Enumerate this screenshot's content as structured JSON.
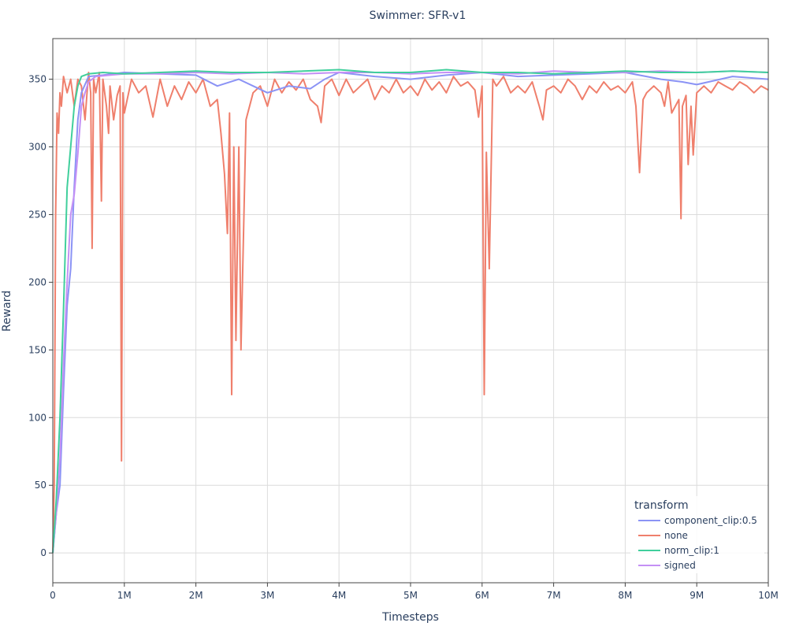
{
  "chart_data": {
    "type": "line",
    "title": "Swimmer: SFR-v1",
    "xlabel": "Timesteps",
    "ylabel": "Reward",
    "xlim": [
      0,
      10000000
    ],
    "ylim": [
      -22,
      380
    ],
    "grid": true,
    "legend_placement": "bottom-right",
    "legend_title": "transform",
    "x_ticks": [
      {
        "value": 0,
        "label": "0"
      },
      {
        "value": 1000000,
        "label": "1M"
      },
      {
        "value": 2000000,
        "label": "2M"
      },
      {
        "value": 3000000,
        "label": "3M"
      },
      {
        "value": 4000000,
        "label": "4M"
      },
      {
        "value": 5000000,
        "label": "5M"
      },
      {
        "value": 6000000,
        "label": "6M"
      },
      {
        "value": 7000000,
        "label": "7M"
      },
      {
        "value": 8000000,
        "label": "8M"
      },
      {
        "value": 9000000,
        "label": "9M"
      },
      {
        "value": 10000000,
        "label": "10M"
      }
    ],
    "y_ticks": [
      {
        "value": 0,
        "label": "0"
      },
      {
        "value": 50,
        "label": "50"
      },
      {
        "value": 100,
        "label": "100"
      },
      {
        "value": 150,
        "label": "150"
      },
      {
        "value": 200,
        "label": "200"
      },
      {
        "value": 250,
        "label": "250"
      },
      {
        "value": 300,
        "label": "300"
      },
      {
        "value": 350,
        "label": "350"
      }
    ],
    "series": [
      {
        "name": "component_clip:0.5",
        "color": "#8b93f5",
        "points": [
          [
            0,
            0
          ],
          [
            50000,
            30
          ],
          [
            100000,
            50
          ],
          [
            150000,
            120
          ],
          [
            200000,
            183
          ],
          [
            250000,
            210
          ],
          [
            300000,
            270
          ],
          [
            350000,
            320
          ],
          [
            400000,
            340
          ],
          [
            500000,
            352
          ],
          [
            700000,
            353
          ],
          [
            1000000,
            355
          ],
          [
            1500000,
            354
          ],
          [
            2000000,
            353
          ],
          [
            2300000,
            345
          ],
          [
            2600000,
            350
          ],
          [
            2800000,
            345
          ],
          [
            3000000,
            340
          ],
          [
            3300000,
            345
          ],
          [
            3600000,
            343
          ],
          [
            3800000,
            350
          ],
          [
            4000000,
            355
          ],
          [
            4500000,
            352
          ],
          [
            5000000,
            350
          ],
          [
            5500000,
            353
          ],
          [
            6000000,
            355
          ],
          [
            6500000,
            352
          ],
          [
            7000000,
            353
          ],
          [
            7500000,
            354
          ],
          [
            8000000,
            355
          ],
          [
            8500000,
            350
          ],
          [
            8800000,
            348
          ],
          [
            9000000,
            346
          ],
          [
            9500000,
            352
          ],
          [
            10000000,
            350
          ]
        ]
      },
      {
        "name": "none",
        "color": "#ef7f6c",
        "points": [
          [
            0,
            0
          ],
          [
            20000,
            50
          ],
          [
            40000,
            250
          ],
          [
            60000,
            325
          ],
          [
            80000,
            310
          ],
          [
            100000,
            340
          ],
          [
            120000,
            330
          ],
          [
            150000,
            352
          ],
          [
            200000,
            340
          ],
          [
            250000,
            350
          ],
          [
            300000,
            330
          ],
          [
            350000,
            350
          ],
          [
            400000,
            345
          ],
          [
            450000,
            320
          ],
          [
            500000,
            355
          ],
          [
            530000,
            340
          ],
          [
            550000,
            225
          ],
          [
            570000,
            350
          ],
          [
            600000,
            340
          ],
          [
            650000,
            355
          ],
          [
            680000,
            260
          ],
          [
            700000,
            350
          ],
          [
            750000,
            330
          ],
          [
            780000,
            310
          ],
          [
            800000,
            345
          ],
          [
            850000,
            320
          ],
          [
            900000,
            338
          ],
          [
            940000,
            345
          ],
          [
            960000,
            68
          ],
          [
            980000,
            340
          ],
          [
            1000000,
            325
          ],
          [
            1100000,
            350
          ],
          [
            1200000,
            340
          ],
          [
            1300000,
            345
          ],
          [
            1400000,
            322
          ],
          [
            1500000,
            350
          ],
          [
            1600000,
            330
          ],
          [
            1700000,
            345
          ],
          [
            1800000,
            335
          ],
          [
            1900000,
            348
          ],
          [
            2000000,
            340
          ],
          [
            2100000,
            350
          ],
          [
            2200000,
            330
          ],
          [
            2300000,
            335
          ],
          [
            2350000,
            310
          ],
          [
            2400000,
            280
          ],
          [
            2440000,
            236
          ],
          [
            2470000,
            325
          ],
          [
            2500000,
            117
          ],
          [
            2530000,
            300
          ],
          [
            2560000,
            157
          ],
          [
            2600000,
            300
          ],
          [
            2630000,
            150
          ],
          [
            2700000,
            320
          ],
          [
            2800000,
            340
          ],
          [
            2900000,
            345
          ],
          [
            3000000,
            330
          ],
          [
            3100000,
            350
          ],
          [
            3200000,
            340
          ],
          [
            3300000,
            348
          ],
          [
            3400000,
            342
          ],
          [
            3500000,
            350
          ],
          [
            3600000,
            335
          ],
          [
            3700000,
            330
          ],
          [
            3750000,
            318
          ],
          [
            3800000,
            345
          ],
          [
            3900000,
            350
          ],
          [
            4000000,
            338
          ],
          [
            4100000,
            350
          ],
          [
            4200000,
            340
          ],
          [
            4300000,
            345
          ],
          [
            4400000,
            350
          ],
          [
            4500000,
            335
          ],
          [
            4600000,
            345
          ],
          [
            4700000,
            340
          ],
          [
            4800000,
            350
          ],
          [
            4900000,
            340
          ],
          [
            5000000,
            345
          ],
          [
            5100000,
            338
          ],
          [
            5200000,
            350
          ],
          [
            5300000,
            342
          ],
          [
            5400000,
            348
          ],
          [
            5500000,
            340
          ],
          [
            5600000,
            352
          ],
          [
            5700000,
            345
          ],
          [
            5800000,
            348
          ],
          [
            5900000,
            342
          ],
          [
            5950000,
            322
          ],
          [
            6000000,
            345
          ],
          [
            6030000,
            117
          ],
          [
            6060000,
            296
          ],
          [
            6100000,
            210
          ],
          [
            6150000,
            350
          ],
          [
            6200000,
            345
          ],
          [
            6300000,
            352
          ],
          [
            6400000,
            340
          ],
          [
            6500000,
            345
          ],
          [
            6600000,
            340
          ],
          [
            6700000,
            348
          ],
          [
            6800000,
            330
          ],
          [
            6850000,
            320
          ],
          [
            6900000,
            342
          ],
          [
            7000000,
            345
          ],
          [
            7100000,
            340
          ],
          [
            7200000,
            350
          ],
          [
            7300000,
            345
          ],
          [
            7400000,
            335
          ],
          [
            7500000,
            345
          ],
          [
            7600000,
            340
          ],
          [
            7700000,
            348
          ],
          [
            7800000,
            342
          ],
          [
            7900000,
            345
          ],
          [
            8000000,
            340
          ],
          [
            8100000,
            348
          ],
          [
            8150000,
            330
          ],
          [
            8200000,
            281
          ],
          [
            8250000,
            335
          ],
          [
            8300000,
            340
          ],
          [
            8400000,
            345
          ],
          [
            8500000,
            340
          ],
          [
            8550000,
            330
          ],
          [
            8600000,
            348
          ],
          [
            8650000,
            325
          ],
          [
            8700000,
            330
          ],
          [
            8750000,
            335
          ],
          [
            8780000,
            247
          ],
          [
            8800000,
            330
          ],
          [
            8850000,
            338
          ],
          [
            8880000,
            287
          ],
          [
            8920000,
            330
          ],
          [
            8950000,
            294
          ],
          [
            9000000,
            340
          ],
          [
            9100000,
            345
          ],
          [
            9200000,
            340
          ],
          [
            9300000,
            348
          ],
          [
            9400000,
            345
          ],
          [
            9500000,
            342
          ],
          [
            9600000,
            348
          ],
          [
            9700000,
            345
          ],
          [
            9800000,
            340
          ],
          [
            9900000,
            345
          ],
          [
            10000000,
            342
          ]
        ]
      },
      {
        "name": "norm_clip:1",
        "color": "#40cf9c",
        "points": [
          [
            0,
            0
          ],
          [
            50000,
            40
          ],
          [
            100000,
            100
          ],
          [
            150000,
            180
          ],
          [
            200000,
            270
          ],
          [
            250000,
            300
          ],
          [
            300000,
            330
          ],
          [
            350000,
            345
          ],
          [
            400000,
            352
          ],
          [
            500000,
            354
          ],
          [
            700000,
            355
          ],
          [
            1000000,
            354
          ],
          [
            1500000,
            355
          ],
          [
            2000000,
            356
          ],
          [
            2500000,
            355
          ],
          [
            3000000,
            355
          ],
          [
            3500000,
            356
          ],
          [
            4000000,
            357
          ],
          [
            4500000,
            355
          ],
          [
            5000000,
            355
          ],
          [
            5500000,
            357
          ],
          [
            6000000,
            355
          ],
          [
            6500000,
            355
          ],
          [
            7000000,
            354
          ],
          [
            7500000,
            355
          ],
          [
            8000000,
            356
          ],
          [
            8500000,
            355
          ],
          [
            9000000,
            355
          ],
          [
            9500000,
            356
          ],
          [
            10000000,
            355
          ]
        ]
      },
      {
        "name": "signed",
        "color": "#c490f5",
        "points": [
          [
            0,
            0
          ],
          [
            50000,
            30
          ],
          [
            100000,
            70
          ],
          [
            150000,
            140
          ],
          [
            200000,
            200
          ],
          [
            250000,
            250
          ],
          [
            300000,
            265
          ],
          [
            350000,
            295
          ],
          [
            400000,
            330
          ],
          [
            450000,
            340
          ],
          [
            500000,
            348
          ],
          [
            600000,
            352
          ],
          [
            800000,
            353
          ],
          [
            1000000,
            354
          ],
          [
            1500000,
            354
          ],
          [
            2000000,
            355
          ],
          [
            2500000,
            354
          ],
          [
            3000000,
            355
          ],
          [
            3500000,
            354
          ],
          [
            4000000,
            355
          ],
          [
            4500000,
            355
          ],
          [
            5000000,
            354
          ],
          [
            5500000,
            355
          ],
          [
            6000000,
            355
          ],
          [
            6500000,
            354
          ],
          [
            7000000,
            356
          ],
          [
            7500000,
            355
          ],
          [
            8000000,
            355
          ],
          [
            8500000,
            356
          ],
          [
            9000000,
            355
          ],
          [
            9500000,
            356
          ],
          [
            10000000,
            355
          ]
        ]
      }
    ]
  }
}
